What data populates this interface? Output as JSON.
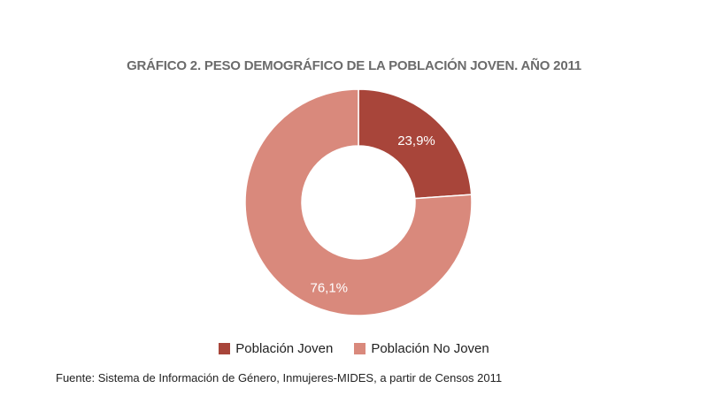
{
  "title": "GRÁFICO 2. PESO DEMOGRÁFICO DE LA POBLACIÓN JOVEN. AÑO 2011",
  "source": "Fuente: Sistema de Información de Género, Inmujeres-MIDES, a partir de Censos 2011",
  "chart_data": {
    "type": "pie",
    "subtype": "donut",
    "title": "GRÁFICO 2. PESO DEMOGRÁFICO DE LA POBLACIÓN JOVEN. AÑO 2011",
    "slices": [
      {
        "name": "Población Joven",
        "value": 23.9,
        "label": "23,9%",
        "color": "#a8453a"
      },
      {
        "name": "Población No Joven",
        "value": 76.1,
        "label": "76,1%",
        "color": "#d9897c"
      }
    ],
    "legend_position": "bottom"
  }
}
